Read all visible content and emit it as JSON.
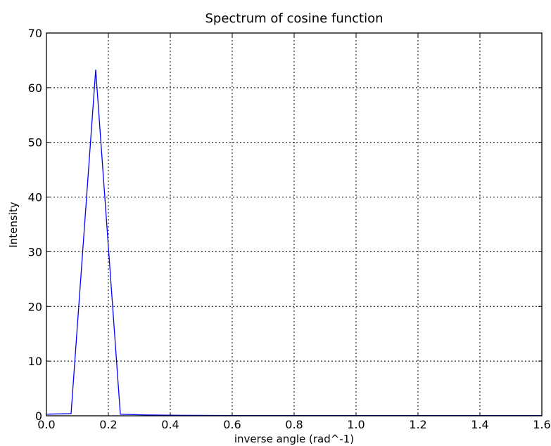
{
  "chart_data": {
    "type": "line",
    "title": "Spectrum of cosine function",
    "xlabel": "inverse angle (rad^-1)",
    "ylabel": "Intensity",
    "xlim": [
      0.0,
      1.6
    ],
    "ylim": [
      0,
      70
    ],
    "x_ticks": [
      "0.0",
      "0.2",
      "0.4",
      "0.6",
      "0.8",
      "1.0",
      "1.2",
      "1.4",
      "1.6"
    ],
    "y_ticks": [
      "0",
      "10",
      "20",
      "30",
      "40",
      "50",
      "60",
      "70"
    ],
    "grid": true,
    "series": [
      {
        "color": "#0000ff",
        "x": [
          0.0,
          0.0796,
          0.1592,
          0.2387,
          0.3183,
          0.3979,
          0.4775,
          0.557,
          0.6366
        ],
        "y": [
          0.3,
          0.4,
          63.3,
          0.3,
          0.15,
          0.1,
          0.08,
          0.06,
          0.05
        ]
      }
    ]
  }
}
